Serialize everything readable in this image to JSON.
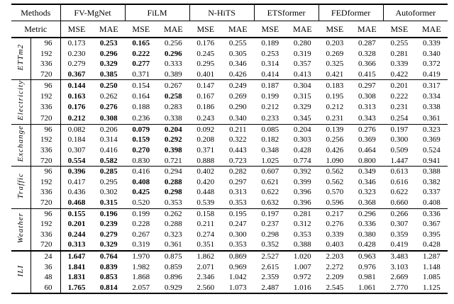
{
  "colors": {
    "text": "#000000",
    "background": "#ffffff",
    "rule": "#000000"
  },
  "table": {
    "header": {
      "methods_label": "Methods",
      "metric_label": "Metric",
      "methods": [
        "FV-MgNet",
        "FiLM",
        "N-HiTS",
        "ETSformer",
        "FEDformer",
        "Autoformer"
      ],
      "metrics": [
        "MSE",
        "MAE"
      ]
    },
    "blocks": [
      {
        "dataset": "ETTm2",
        "rows": [
          {
            "horizon": "96",
            "values": [
              "0.173",
              "0.253",
              "0.165",
              "0.256",
              "0.176",
              "0.255",
              "0.189",
              "0.280",
              "0.203",
              "0.287",
              "0.255",
              "0.339"
            ],
            "bold": [
              1,
              2
            ]
          },
          {
            "horizon": "192",
            "values": [
              "0.230",
              "0.296",
              "0.222",
              "0.296",
              "0.245",
              "0.305",
              "0.253",
              "0.319",
              "0.269",
              "0.328",
              "0.281",
              "0.340"
            ],
            "bold": [
              1,
              2,
              3
            ]
          },
          {
            "horizon": "336",
            "values": [
              "0.279",
              "0.329",
              "0.277",
              "0.333",
              "0.295",
              "0.346",
              "0.314",
              "0.357",
              "0.325",
              "0.366",
              "0.339",
              "0.372"
            ],
            "bold": [
              1,
              2
            ]
          },
          {
            "horizon": "720",
            "values": [
              "0.367",
              "0.385",
              "0.371",
              "0.389",
              "0.401",
              "0.426",
              "0.414",
              "0.413",
              "0.421",
              "0.415",
              "0.422",
              "0.419"
            ],
            "bold": [
              0,
              1
            ]
          }
        ]
      },
      {
        "dataset": "Electricity",
        "rows": [
          {
            "horizon": "96",
            "values": [
              "0.144",
              "0.250",
              "0.154",
              "0.267",
              "0.147",
              "0.249",
              "0.187",
              "0.304",
              "0.183",
              "0.297",
              "0.201",
              "0.317"
            ],
            "bold": [
              0,
              1
            ]
          },
          {
            "horizon": "192",
            "values": [
              "0.163",
              "0.262",
              "0.164",
              "0.258",
              "0.167",
              "0.269",
              "0.199",
              "0.315",
              "0.195",
              "0.308",
              "0.222",
              "0.334"
            ],
            "bold": [
              0,
              3
            ]
          },
          {
            "horizon": "336",
            "values": [
              "0.176",
              "0.276",
              "0.188",
              "0.283",
              "0.186",
              "0.290",
              "0.212",
              "0.329",
              "0.212",
              "0.313",
              "0.231",
              "0.338"
            ],
            "bold": [
              0,
              1
            ]
          },
          {
            "horizon": "720",
            "values": [
              "0.212",
              "0.308",
              "0.236",
              "0.338",
              "0.243",
              "0.340",
              "0.233",
              "0.345",
              "0.231",
              "0.343",
              "0.254",
              "0.361"
            ],
            "bold": [
              0,
              1
            ]
          }
        ]
      },
      {
        "dataset": "Exchange",
        "rows": [
          {
            "horizon": "96",
            "values": [
              "0.082",
              "0.206",
              "0.079",
              "0.204",
              "0.092",
              "0.211",
              "0.085",
              "0.204",
              "0.139",
              "0.276",
              "0.197",
              "0.323"
            ],
            "bold": [
              2,
              3
            ]
          },
          {
            "horizon": "192",
            "values": [
              "0.184",
              "0.314",
              "0.159",
              "0.292",
              "0.208",
              "0.322",
              "0.182",
              "0.303",
              "0.256",
              "0.369",
              "0.300",
              "0.369"
            ],
            "bold": [
              2,
              3
            ]
          },
          {
            "horizon": "336",
            "values": [
              "0.307",
              "0.416",
              "0.270",
              "0.398",
              "0.371",
              "0.443",
              "0.348",
              "0.428",
              "0.426",
              "0.464",
              "0.509",
              "0.524"
            ],
            "bold": [
              2,
              3
            ]
          },
          {
            "horizon": "720",
            "values": [
              "0.554",
              "0.582",
              "0.830",
              "0.721",
              "0.888",
              "0.723",
              "1.025",
              "0.774",
              "1.090",
              "0.800",
              "1.447",
              "0.941"
            ],
            "bold": [
              0,
              1
            ]
          }
        ]
      },
      {
        "dataset": "Traffic",
        "rows": [
          {
            "horizon": "96",
            "values": [
              "0.396",
              "0.285",
              "0.416",
              "0.294",
              "0.402",
              "0.282",
              "0.607",
              "0.392",
              "0.562",
              "0.349",
              "0.613",
              "0.388"
            ],
            "bold": [
              0,
              1
            ]
          },
          {
            "horizon": "192",
            "values": [
              "0.417",
              "0.295",
              "0.408",
              "0.288",
              "0.420",
              "0.297",
              "0.621",
              "0.399",
              "0.562",
              "0.346",
              "0.616",
              "0.382"
            ],
            "bold": [
              2,
              3
            ]
          },
          {
            "horizon": "336",
            "values": [
              "0.436",
              "0.302",
              "0.425",
              "0.298",
              "0.448",
              "0.313",
              "0.622",
              "0.396",
              "0.570",
              "0.323",
              "0.622",
              "0.337"
            ],
            "bold": [
              2,
              3
            ]
          },
          {
            "horizon": "720",
            "values": [
              "0.468",
              "0.315",
              "0.520",
              "0.353",
              "0.539",
              "0.353",
              "0.632",
              "0.396",
              "0.596",
              "0.368",
              "0.660",
              "0.408"
            ],
            "bold": [
              0,
              1
            ]
          }
        ]
      },
      {
        "dataset": "Weather",
        "rows": [
          {
            "horizon": "96",
            "values": [
              "0.155",
              "0.196",
              "0.199",
              "0.262",
              "0.158",
              "0.195",
              "0.197",
              "0.281",
              "0.217",
              "0.296",
              "0.266",
              "0.336"
            ],
            "bold": [
              0,
              1
            ]
          },
          {
            "horizon": "192",
            "values": [
              "0.201",
              "0.239",
              "0.228",
              "0.288",
              "0.211",
              "0.247",
              "0.237",
              "0.312",
              "0.276",
              "0.336",
              "0.307",
              "0.367"
            ],
            "bold": [
              0,
              1
            ]
          },
          {
            "horizon": "336",
            "values": [
              "0.244",
              "0.279",
              "0.267",
              "0.323",
              "0.274",
              "0.300",
              "0.298",
              "0.353",
              "0.339",
              "0.380",
              "0.359",
              "0.395"
            ],
            "bold": [
              0,
              1
            ]
          },
          {
            "horizon": "720",
            "values": [
              "0.313",
              "0.329",
              "0.319",
              "0.361",
              "0.351",
              "0.353",
              "0.352",
              "0.388",
              "0.403",
              "0.428",
              "0.419",
              "0.428"
            ],
            "bold": [
              0,
              1
            ]
          }
        ]
      },
      {
        "dataset": "ILI",
        "thick_top": true,
        "rows": [
          {
            "horizon": "24",
            "values": [
              "1.647",
              "0.764",
              "1.970",
              "0.875",
              "1.862",
              "0.869",
              "2.527",
              "1.020",
              "2.203",
              "0.963",
              "3.483",
              "1.287"
            ],
            "bold": [
              0,
              1
            ]
          },
          {
            "horizon": "36",
            "values": [
              "1.841",
              "0.839",
              "1.982",
              "0.859",
              "2.071",
              "0.969",
              "2.615",
              "1.007",
              "2.272",
              "0.976",
              "3.103",
              "1.148"
            ],
            "bold": [
              0,
              1
            ]
          },
          {
            "horizon": "48",
            "values": [
              "1.831",
              "0.853",
              "1.868",
              "0.896",
              "2.346",
              "1.042",
              "2.359",
              "0.972",
              "2.209",
              "0.981",
              "2.669",
              "1.085"
            ],
            "bold": [
              0,
              1
            ]
          },
          {
            "horizon": "60",
            "values": [
              "1.765",
              "0.814",
              "2.057",
              "0.929",
              "2.560",
              "1.073",
              "2.487",
              "1.016",
              "2.545",
              "1.061",
              "2.770",
              "1.125"
            ],
            "bold": [
              0,
              1
            ]
          }
        ]
      }
    ]
  }
}
